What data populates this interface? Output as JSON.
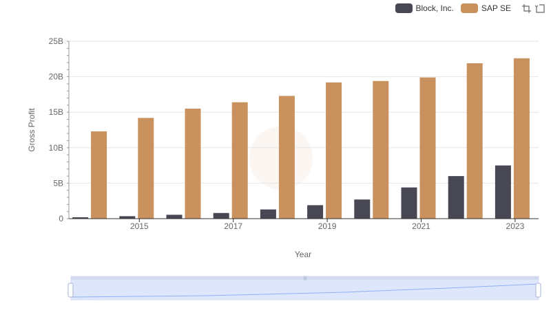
{
  "legend": {
    "items": [
      {
        "label": "Block, Inc.",
        "color": "#484855"
      },
      {
        "label": "SAP SE",
        "color": "#c8915d"
      }
    ],
    "tools": [
      "restore-icon",
      "zoom-reset-icon"
    ]
  },
  "chart_data": {
    "type": "bar",
    "x": [
      2014,
      2015,
      2016,
      2017,
      2018,
      2019,
      2020,
      2021,
      2022,
      2023
    ],
    "x_tick_labels": [
      "2015",
      "2017",
      "2019",
      "2021",
      "2023"
    ],
    "xlabel": "Year",
    "ylabel": "Gross Profit",
    "ylim": [
      0,
      25000000000
    ],
    "y_tick_labels": [
      "0",
      "5B",
      "10B",
      "15B",
      "20B",
      "25B"
    ],
    "grid": true,
    "legend_position": "top-right",
    "series": [
      {
        "name": "Block, Inc.",
        "color": "#484855",
        "values": [
          200000000,
          350000000,
          550000000,
          800000000,
          1300000000,
          1900000000,
          2700000000,
          4400000000,
          6000000000,
          7500000000
        ]
      },
      {
        "name": "SAP SE",
        "color": "#c8915d",
        "values": [
          12300000000,
          14200000000,
          15500000000,
          16400000000,
          17300000000,
          19200000000,
          19400000000,
          19900000000,
          21900000000,
          22600000000
        ]
      }
    ]
  }
}
